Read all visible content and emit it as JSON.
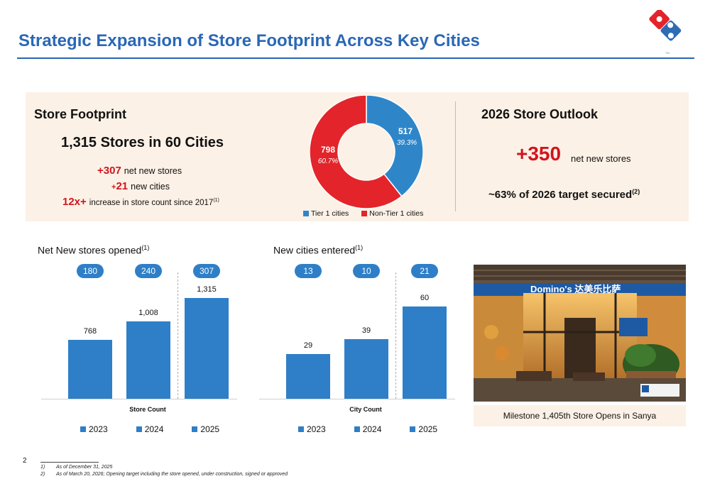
{
  "title": "Strategic Expansion of Store Footprint Across Key Cities",
  "footprint": {
    "heading": "Store Footprint",
    "headline": "1,315 Stores in 60 Cities",
    "net_new_num": "+307",
    "net_new_label": "net new stores",
    "new_cities_plus": "+",
    "new_cities_num": "21",
    "new_cities_label": "new cities",
    "increase_num": "12x+",
    "increase_label": "increase in store count since 2017",
    "increase_note": "(1)"
  },
  "outlook": {
    "heading": "2026 Store Outlook",
    "number": "+350",
    "number_label": "net new stores",
    "target": "~63% of 2026 target secured",
    "target_note": "(2)"
  },
  "colors": {
    "title_blue": "#2a67b6",
    "bar_blue": "#2e7fc7",
    "donut_blue": "#2e86c9",
    "donut_red": "#e3242b",
    "accent_red": "#d3141e",
    "panel_beige": "#fcf1e6"
  },
  "donut": {
    "segments": [
      {
        "name": "Tier 1 cities",
        "value": "517",
        "pct": "39.3%",
        "share": 0.393
      },
      {
        "name": "Non-Tier 1 cities",
        "value": "798",
        "pct": "60.7%",
        "share": 0.607
      }
    ]
  },
  "stores_chart": {
    "title": "Net New stores opened",
    "title_note": "(1)",
    "axis_label": "Store Count",
    "pills": [
      "180",
      "240",
      "307"
    ],
    "legend": [
      "2023",
      "2024",
      "2025"
    ]
  },
  "cities_chart": {
    "title": "New cities entered",
    "title_note": "(1)",
    "axis_label": "City Count",
    "pills": [
      "13",
      "10",
      "21"
    ],
    "legend": [
      "2023",
      "2024",
      "2025"
    ]
  },
  "chart_data": [
    {
      "type": "pie",
      "categories": [
        "Tier 1 cities",
        "Non-Tier 1 cities"
      ],
      "values": [
        517,
        798
      ],
      "labels": [
        "39.3%",
        "60.7%"
      ]
    },
    {
      "type": "bar",
      "categories": [
        "2023",
        "2024",
        "2025"
      ],
      "values": [
        768,
        1008,
        1315
      ],
      "value_labels": [
        "768",
        "1,008",
        "1,315"
      ],
      "xlabel": "Store Count",
      "ylim": [
        0,
        1500
      ]
    },
    {
      "type": "bar",
      "categories": [
        "2023",
        "2024",
        "2025"
      ],
      "values": [
        29,
        39,
        60
      ],
      "value_labels": [
        "29",
        "39",
        "60"
      ],
      "xlabel": "City Count",
      "ylim": [
        0,
        75
      ]
    }
  ],
  "photo": {
    "sign_text": "Domino's 达美乐比萨",
    "caption": "Milestone 1,405th Store Opens in Sanya"
  },
  "footer": {
    "page_number": "2",
    "notes": [
      {
        "num": "1)",
        "text": "As of December 31, 2025"
      },
      {
        "num": "2)",
        "text": "As of March 20, 2026; Opening target including the store opened, under construction, signed or approved"
      }
    ]
  }
}
